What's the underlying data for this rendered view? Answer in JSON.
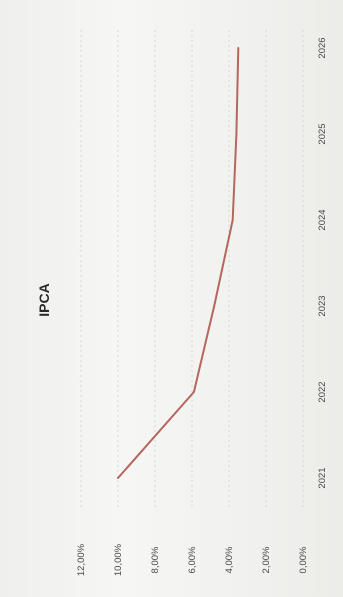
{
  "chart_data": {
    "type": "line",
    "title": "IPCA",
    "orientation": "rotated-90-clockwise",
    "categories": [
      "2021",
      "2022",
      "2023",
      "2024",
      "2025",
      "2026"
    ],
    "series": [
      {
        "values": [
          0.1,
          0.059,
          0.048,
          0.038,
          0.036,
          0.035
        ],
        "color": "#b5675e"
      }
    ],
    "y_ticks": [
      "0,00%",
      "2,00%",
      "4,00%",
      "6,00%",
      "8,00%",
      "10,00%",
      "12,00%"
    ],
    "ylim": [
      0,
      0.12
    ],
    "grid": true,
    "legend": "none"
  }
}
